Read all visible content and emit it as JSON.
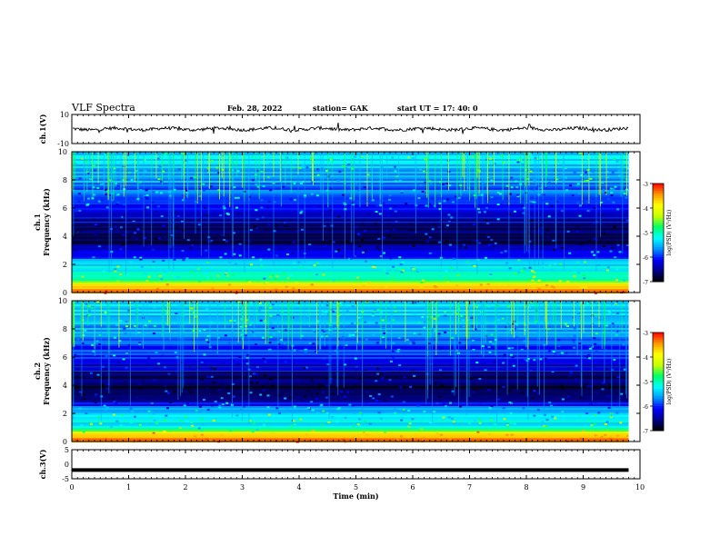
{
  "header": {
    "title": "VLF  Spectra",
    "date": "Feb. 28, 2022",
    "station": "station= GAK",
    "start": "start  UT =   17: 40: 0"
  },
  "chart_data": [
    {
      "type": "line",
      "panel": "ch1-waveform",
      "ylabel": "ch.1(V)",
      "xlim": [
        0,
        10
      ],
      "ylim": [
        -10,
        10
      ],
      "yticks": [
        "10",
        "-10"
      ],
      "baseline": 0,
      "trace_end_min": 9.8
    },
    {
      "type": "heatmap",
      "panel": "ch1-spectrogram",
      "ylabel": "ch.1 Frequency  (kHz)",
      "xlim": [
        0,
        10
      ],
      "ylim": [
        0,
        10
      ],
      "yticks": [
        "0",
        "2",
        "4",
        "6",
        "8",
        "10"
      ],
      "data_end_min": 9.8,
      "colorbar": {
        "label": "log(PSD) (V²/Hz)",
        "range": [
          -7,
          -3
        ],
        "ticks": [
          "-3",
          "-4",
          "-5",
          "-6",
          "-7"
        ]
      },
      "frequency_profile_khz": [
        {
          "f": 0.0,
          "level": -3.4
        },
        {
          "f": 0.6,
          "level": -3.8
        },
        {
          "f": 1.0,
          "level": -5.2
        },
        {
          "f": 2.0,
          "level": -5.3
        },
        {
          "f": 3.0,
          "level": -6.4
        },
        {
          "f": 4.0,
          "level": -6.8
        },
        {
          "f": 5.0,
          "level": -6.6
        },
        {
          "f": 6.0,
          "level": -6.0
        },
        {
          "f": 7.0,
          "level": -5.9
        },
        {
          "f": 8.0,
          "level": -5.6
        },
        {
          "f": 10.0,
          "level": -5.3
        }
      ]
    },
    {
      "type": "heatmap",
      "panel": "ch2-spectrogram",
      "ylabel": "ch.2 Frequency  (kHz)",
      "xlim": [
        0,
        10
      ],
      "ylim": [
        0,
        10
      ],
      "yticks": [
        "0",
        "2",
        "4",
        "6",
        "8",
        "10"
      ],
      "data_end_min": 9.8,
      "colorbar": {
        "label": "log(PSD) (V²/Hz)",
        "range": [
          -7,
          -3
        ],
        "ticks": [
          "-3",
          "-4",
          "-5",
          "-6",
          "-7"
        ]
      },
      "frequency_profile_khz": [
        {
          "f": 0.0,
          "level": -3.4
        },
        {
          "f": 0.6,
          "level": -3.8
        },
        {
          "f": 1.0,
          "level": -5.2
        },
        {
          "f": 2.0,
          "level": -5.3
        },
        {
          "f": 3.0,
          "level": -6.4
        },
        {
          "f": 4.0,
          "level": -6.8
        },
        {
          "f": 5.0,
          "level": -6.6
        },
        {
          "f": 6.0,
          "level": -6.0
        },
        {
          "f": 7.0,
          "level": -5.9
        },
        {
          "f": 8.0,
          "level": -5.6
        },
        {
          "f": 10.0,
          "level": -5.3
        }
      ]
    },
    {
      "type": "line",
      "panel": "ch3-waveform",
      "ylabel": "ch.3(V)",
      "xlabel": "Time  (min)",
      "xlim": [
        0,
        10
      ],
      "ylim": [
        -5,
        5
      ],
      "yticks": [
        "5",
        "0",
        "-5"
      ],
      "constant_value": -2,
      "xticks": [
        "0",
        "1",
        "2",
        "3",
        "4",
        "5",
        "6",
        "7",
        "8",
        "9",
        "10"
      ]
    }
  ],
  "colors": {
    "colormap": [
      "#000000",
      "#00008b",
      "#0000ff",
      "#0096ff",
      "#00ffff",
      "#00ff64",
      "#c8ff00",
      "#ffff00",
      "#ff9600",
      "#ff0000"
    ]
  }
}
